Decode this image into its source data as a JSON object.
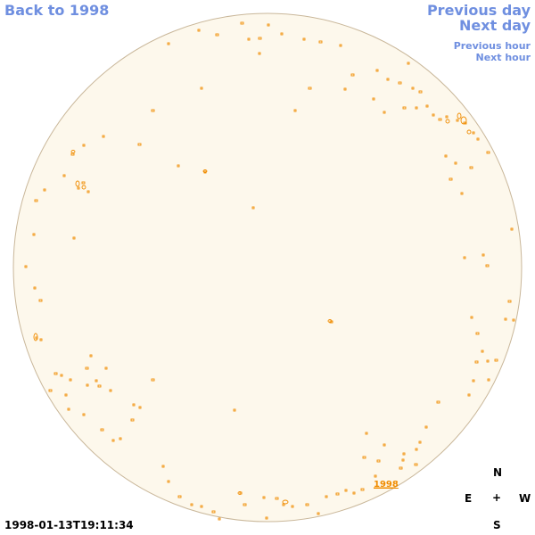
{
  "navigation": {
    "back_label": "Back to 1998",
    "previous_day_label": "Previous day",
    "next_day_label": "Next day",
    "previous_hour_label": "Previous hour",
    "next_hour_label": "Next hour"
  },
  "timestamp": "1998-01-13T19:11:34",
  "disk_label": "1998",
  "compass": {
    "north": "N",
    "east": "E",
    "center": "+",
    "west": "W",
    "south": "S"
  },
  "colors": {
    "disk_fill": "#fdf8ec",
    "disk_stroke": "#c9b79a",
    "feature": "#f08c00",
    "link": "#6f8fe0"
  }
}
